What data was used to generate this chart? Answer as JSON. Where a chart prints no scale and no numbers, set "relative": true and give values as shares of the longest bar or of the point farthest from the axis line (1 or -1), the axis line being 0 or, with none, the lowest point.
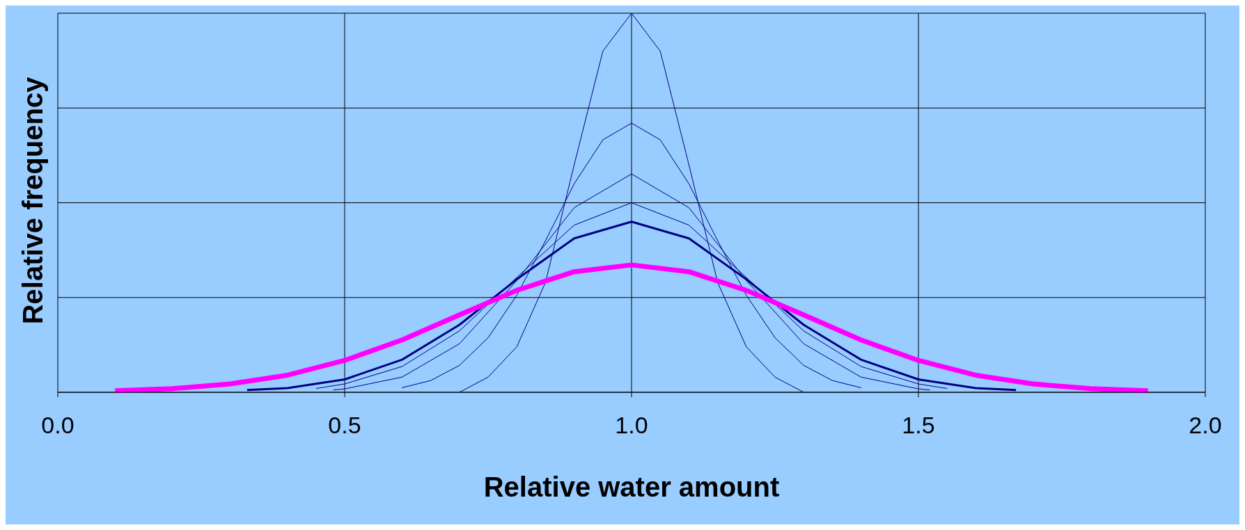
{
  "chart_data": {
    "type": "line",
    "relative": true,
    "xlabel": "Relative water amount",
    "ylabel": "Relative frequency",
    "xlim": [
      0,
      2
    ],
    "xticks": [
      {
        "value": 0,
        "label": "0.0"
      },
      {
        "value": 0.5,
        "label": "0.5"
      },
      {
        "value": 1,
        "label": "1.0"
      },
      {
        "value": 1.5,
        "label": "1.5"
      },
      {
        "value": 2,
        "label": "2.0"
      }
    ],
    "grid": true,
    "marker": "none",
    "line_style": "solid",
    "series": [
      {
        "color": "#000080",
        "x": [
          0.7,
          0.75,
          0.8,
          0.85,
          0.9,
          0.95,
          1.0,
          1.05,
          1.1,
          1.15,
          1.2,
          1.25,
          1.3
        ],
        "values": [
          0,
          0.04,
          0.12,
          0.29,
          0.6,
          0.9,
          1,
          0.9,
          0.6,
          0.29,
          0.12,
          0.04,
          0
        ]
      },
      {
        "color": "#000080",
        "x": [
          0.6,
          0.65,
          0.7,
          0.75,
          0.8,
          0.85,
          0.9,
          0.95,
          1.0,
          1.05,
          1.1,
          1.15,
          1.2,
          1.25,
          1.3,
          1.35,
          1.4
        ],
        "values": [
          0.012,
          0.031,
          0.071,
          0.144,
          0.256,
          0.4,
          0.55,
          0.666,
          0.71,
          0.666,
          0.55,
          0.4,
          0.256,
          0.144,
          0.071,
          0.031,
          0.012
        ]
      },
      {
        "color": "#000080",
        "x": [
          0.48,
          0.5,
          0.6,
          0.7,
          0.8,
          0.9,
          1.0,
          1.1,
          1.2,
          1.3,
          1.4,
          1.5,
          1.52
        ],
        "values": [
          0.006,
          0.009,
          0.04,
          0.128,
          0.295,
          0.487,
          0.576,
          0.487,
          0.295,
          0.128,
          0.04,
          0.009,
          0.006
        ]
      },
      {
        "color": "#000080",
        "x": [
          0.45,
          0.5,
          0.6,
          0.7,
          0.8,
          0.9,
          1.0,
          1.1,
          1.2,
          1.3,
          1.4,
          1.5,
          1.55
        ],
        "values": [
          0.01,
          0.022,
          0.068,
          0.162,
          0.303,
          0.441,
          0.5,
          0.441,
          0.303,
          0.162,
          0.068,
          0.022,
          0.01
        ]
      },
      {
        "color": "#000080",
        "x": [
          0.33,
          0.4,
          0.5,
          0.6,
          0.7,
          0.8,
          0.9,
          1.0,
          1.1,
          1.2,
          1.3,
          1.4,
          1.5,
          1.6,
          1.67
        ],
        "values": [
          0.006,
          0.011,
          0.034,
          0.086,
          0.178,
          0.298,
          0.406,
          0.45,
          0.406,
          0.298,
          0.178,
          0.086,
          0.034,
          0.011,
          0.006
        ]
      },
      {
        "color": "#ff00ff",
        "x": [
          0.1,
          0.2,
          0.3,
          0.4,
          0.5,
          0.6,
          0.7,
          0.8,
          0.9,
          1.0,
          1.1,
          1.2,
          1.3,
          1.4,
          1.5,
          1.6,
          1.7,
          1.8,
          1.9
        ],
        "values": [
          0.004,
          0.0096,
          0.022,
          0.045,
          0.084,
          0.138,
          0.204,
          0.269,
          0.318,
          0.336,
          0.318,
          0.269,
          0.204,
          0.138,
          0.084,
          0.045,
          0.022,
          0.0096,
          0.004
        ]
      }
    ]
  }
}
